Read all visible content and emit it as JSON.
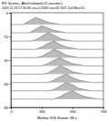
{
  "chart_data": {
    "type": "line",
    "title": "EV Scenic, Afar/Isolated (Z-seismic)",
    "subtitle": "2009-12-18 17:30:48 Lat=-0.2948 Lon=43.7047 Z=6 Mw=5.6",
    "x_label": "Median S/N Station: 86 s",
    "x": [
      0,
      60,
      120,
      180,
      240,
      300,
      360,
      420,
      480,
      540,
      600,
      660,
      720,
      780,
      840,
      900
    ],
    "xlim": [
      0,
      900
    ],
    "xticks": [
      0,
      300,
      600,
      900
    ],
    "ylim": [
      0,
      80
    ],
    "yticks": [
      0,
      20,
      40,
      60,
      80
    ],
    "color": "#555555",
    "series": [
      {
        "values": [
          10,
          10,
          10,
          7,
          4,
          6,
          8,
          9,
          10,
          10,
          10,
          10,
          10,
          10,
          10,
          10
        ]
      },
      {
        "values": [
          17,
          17,
          17,
          17,
          14,
          11,
          13,
          15,
          16,
          17,
          17,
          17,
          17,
          17,
          17,
          17
        ]
      },
      {
        "values": [
          24,
          24,
          24,
          24,
          23,
          20,
          17,
          19,
          22,
          23,
          24,
          24,
          24,
          24,
          24,
          24
        ]
      },
      {
        "values": [
          31,
          31,
          31,
          31,
          31,
          29,
          26,
          24,
          27,
          29,
          30,
          31,
          31,
          31,
          31,
          31
        ]
      },
      {
        "values": [
          38,
          38,
          38,
          38,
          38,
          37,
          34,
          31,
          33,
          36,
          37,
          38,
          38,
          38,
          38,
          38
        ]
      },
      {
        "values": [
          45,
          45,
          45,
          45,
          45,
          45,
          43,
          40,
          38,
          41,
          43,
          44,
          45,
          45,
          45,
          45
        ]
      },
      {
        "values": [
          52,
          52,
          52,
          52,
          52,
          52,
          51,
          48,
          45,
          47,
          50,
          51,
          52,
          52,
          52,
          52
        ]
      },
      {
        "values": [
          59,
          59,
          59,
          59,
          59,
          59,
          59,
          57,
          54,
          52,
          55,
          57,
          58,
          59,
          59,
          59
        ]
      },
      {
        "values": [
          66,
          66,
          66,
          66,
          66,
          66,
          66,
          65,
          62,
          59,
          61,
          64,
          65,
          66,
          66,
          66
        ]
      },
      {
        "values": [
          73,
          73,
          73,
          73,
          73,
          73,
          73,
          73,
          71,
          68,
          66,
          69,
          71,
          72,
          73,
          73
        ]
      }
    ]
  }
}
